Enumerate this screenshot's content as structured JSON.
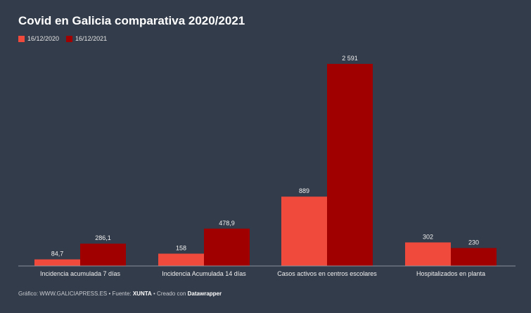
{
  "chart_data": {
    "type": "bar",
    "title": "Covid en Galicia comparativa 2020/2021",
    "categories": [
      "Incidencia acumulada 7 días",
      "Incidencia Acumulada 14 días",
      "Casos activos en centros escolares",
      "Hospitalizados en planta"
    ],
    "series": [
      {
        "name": "16/12/2020",
        "color": "#ef4a3c",
        "values": [
          84.7,
          158,
          889,
          302
        ],
        "labels": [
          "84,7",
          "158",
          "889",
          "302"
        ]
      },
      {
        "name": "16/12/2021",
        "color": "#a10000",
        "values": [
          286.1,
          478.9,
          2591,
          230
        ],
        "labels": [
          "286,1",
          "478,9",
          "2 591",
          "230"
        ]
      }
    ],
    "xlabel": "",
    "ylabel": "",
    "ylim": [
      0,
      2591
    ],
    "grid": false,
    "legend_position": "top-left"
  },
  "footer": {
    "prefix": "Gráfico: WWW.GALICIAPRESS.ES • Fuente: ",
    "source": "XUNTA",
    "middle": " • Creado con ",
    "tool": "Datawrapper"
  }
}
